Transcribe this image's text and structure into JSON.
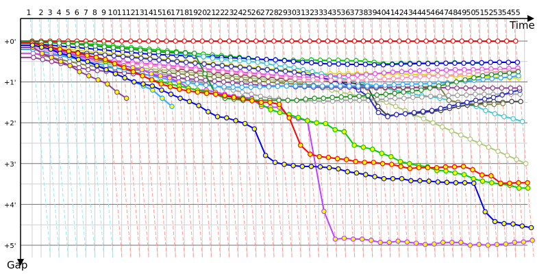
{
  "chart_data": {
    "type": "line",
    "title": "",
    "xlabel": "Time",
    "ylabel": "Gap",
    "x_ticks": [
      "1",
      "2",
      "3",
      "4",
      "5",
      "6",
      "7",
      "8",
      "9",
      "10",
      "11",
      "12",
      "13",
      "14",
      "15",
      "16",
      "17",
      "18",
      "19",
      "20",
      "21",
      "22",
      "23",
      "24",
      "25",
      "26",
      "27",
      "28",
      "29",
      "30",
      "31",
      "32",
      "33",
      "34",
      "35",
      "36",
      "37",
      "38",
      "39",
      "40",
      "41",
      "42",
      "43",
      "44",
      "45",
      "46",
      "47",
      "48",
      "49",
      "50",
      "51",
      "52",
      "53",
      "54",
      "55"
    ],
    "y_ticks": [
      "+0'",
      "+1'",
      "+2'",
      "+3'",
      "+4'",
      "+5'"
    ],
    "y_unit": "minutes",
    "ylim": [
      -0.55,
      5.2
    ],
    "grid": true,
    "y_axis_inverted": true,
    "lap_line_color_early": "#9ee6e6",
    "lap_line_color": "#ff9a9a",
    "series": [
      {
        "color": "#ff0000",
        "fill": "#ffffff",
        "gaps": [
          0,
          0,
          0,
          0,
          0,
          0,
          0,
          0,
          0,
          0,
          0,
          0,
          0,
          0,
          0,
          0,
          0,
          0,
          0,
          0,
          0,
          0,
          0,
          0,
          0,
          0,
          0,
          0,
          0,
          0,
          0,
          0,
          0,
          0,
          0,
          0,
          0,
          0,
          0,
          0,
          0,
          0,
          0,
          0,
          0,
          0,
          0,
          0,
          0,
          0,
          0,
          0,
          0,
          0,
          0
        ]
      },
      {
        "color": "#00cc00",
        "fill": "#ffffff",
        "gaps": [
          0.02,
          0.03,
          0.03,
          0.04,
          0.05,
          0.06,
          0.07,
          0.08,
          0.1,
          0.12,
          0.14,
          0.16,
          0.18,
          0.2,
          0.22,
          0.24,
          0.26,
          0.28,
          0.3,
          0.32,
          0.34,
          0.36,
          0.38,
          0.4,
          0.42,
          0.44,
          0.46,
          0.46,
          0.47,
          0.47,
          0.47,
          0.46,
          0.47,
          0.47,
          0.47,
          0.48,
          0.48,
          0.49,
          0.52,
          0.55,
          0.56,
          0.54,
          0.54,
          0.54,
          0.54,
          0.54,
          0.54,
          0.53,
          0.54,
          0.54,
          0.54
        ]
      },
      {
        "color": "#0000ee",
        "fill": "#ffffff",
        "gaps": [
          0.05,
          0.08,
          0.1,
          0.12,
          0.14,
          0.16,
          0.18,
          0.2,
          0.22,
          0.24,
          0.26,
          0.28,
          0.3,
          0.32,
          0.33,
          0.34,
          0.35,
          0.36,
          0.37,
          0.38,
          0.39,
          0.4,
          0.41,
          0.42,
          0.43,
          0.44,
          0.45,
          0.46,
          0.48,
          0.5,
          0.52,
          0.53,
          0.55,
          0.56,
          0.56,
          0.57,
          0.57,
          0.57,
          0.58,
          0.58,
          0.57,
          0.56,
          0.56,
          0.55,
          0.55,
          0.55,
          0.54,
          0.54,
          0.54,
          0.53,
          0.53,
          0.52,
          0.52,
          0.52,
          0.52
        ]
      },
      {
        "color": "#dddd00",
        "fill": "#ffffff",
        "gaps": [
          0.1,
          0.12,
          0.15,
          0.18,
          0.2,
          0.22,
          0.25,
          0.28,
          0.3,
          0.33,
          0.35,
          0.37,
          0.4,
          0.42,
          0.44,
          0.46,
          0.48,
          0.5,
          0.52,
          0.54,
          0.56,
          0.58,
          0.6,
          0.62,
          0.64,
          0.66,
          0.68,
          0.7,
          0.72,
          0.74,
          0.76,
          0.78,
          0.8,
          0.8,
          0.8,
          0.8,
          0.8,
          0.8,
          0.8,
          0.8,
          0.8,
          0.8,
          0.82,
          0.82,
          0.83,
          0.84,
          0.85,
          0.86,
          0.86,
          0.87,
          0.87,
          0.88,
          0.9,
          0.9,
          0.9
        ]
      },
      {
        "color": "#40c8d0",
        "fill": "#ffffff",
        "gaps": [
          0.02,
          0.03,
          0.04,
          0.05,
          0.06,
          0.08,
          0.1,
          0.12,
          0.14,
          0.16,
          0.18,
          0.2,
          0.22,
          0.24,
          0.26,
          0.28,
          0.3,
          0.32,
          0.35,
          0.38,
          0.42,
          0.45,
          0.47,
          0.48,
          0.5,
          0.52,
          0.55,
          0.6,
          0.62,
          0.65,
          0.7,
          0.75,
          0.8,
          0.85,
          0.9,
          0.95,
          1.0,
          1.05,
          1.1,
          1.15,
          1.2,
          1.25,
          1.3,
          1.33,
          1.36,
          1.4,
          1.45,
          1.5,
          1.55,
          1.6,
          1.7,
          1.78,
          1.85,
          1.9,
          1.97
        ]
      },
      {
        "color": "#b0c878",
        "fill": "#ffffff",
        "gaps": [
          0.15,
          0.2,
          0.25,
          0.3,
          0.35,
          0.4,
          0.45,
          0.5,
          0.55,
          0.6,
          0.62,
          0.64,
          0.66,
          0.68,
          0.7,
          0.72,
          0.74,
          0.76,
          0.78,
          0.8,
          0.82,
          0.84,
          0.86,
          0.88,
          0.9,
          0.92,
          0.94,
          0.96,
          0.98,
          1.0,
          1.05,
          1.1,
          1.15,
          1.2,
          1.25,
          1.3,
          1.35,
          1.4,
          1.45,
          1.5,
          1.6,
          1.7,
          1.8,
          1.9,
          2.0,
          2.1,
          2.2,
          2.3,
          2.4,
          2.5,
          2.6,
          2.7,
          2.8,
          2.9,
          3.0
        ]
      },
      {
        "color": "#404040",
        "fill": "#ffffff",
        "gaps": [
          0.2,
          0.25,
          0.3,
          0.35,
          0.38,
          0.4,
          0.42,
          0.45,
          0.48,
          0.5,
          0.52,
          0.55,
          0.58,
          0.6,
          0.62,
          0.65,
          0.68,
          0.7,
          0.72,
          0.74,
          0.76,
          0.78,
          0.8,
          0.82,
          0.84,
          0.86,
          0.88,
          0.9,
          0.92,
          0.93,
          0.94,
          0.95,
          0.96,
          0.98,
          1.0,
          1.02,
          1.05,
          1.1,
          1.6,
          1.83,
          1.8,
          1.78,
          1.77,
          1.75,
          1.72,
          1.7,
          1.65,
          1.6,
          1.57,
          1.55,
          1.5,
          1.48,
          1.5,
          1.48,
          1.48
        ]
      },
      {
        "color": "#808040",
        "fill": "#ffffff",
        "gaps": [
          0.3,
          0.35,
          0.4,
          0.45,
          0.5,
          0.55,
          0.6,
          0.62,
          0.64,
          0.66,
          0.68,
          0.7,
          0.72,
          0.74,
          0.76,
          0.78,
          0.8,
          0.82,
          0.84,
          0.86,
          0.88,
          0.9,
          0.92,
          0.94,
          0.96,
          0.98,
          1.0,
          1.02,
          1.04,
          1.05,
          1.06,
          1.08,
          1.1,
          1.1,
          1.12,
          1.12,
          1.15,
          1.15,
          1.15,
          1.15,
          1.15,
          1.15,
          1.15,
          1.12,
          1.12,
          1.1,
          1.45,
          1.5,
          1.52,
          1.55,
          1.55,
          1.55,
          1.53
        ]
      },
      {
        "color": "#a0a0a0",
        "fill": "#ffffff",
        "gaps": [
          0.1,
          0.15,
          0.2,
          0.25,
          0.3,
          0.35,
          0.4,
          0.45,
          0.5,
          0.55,
          0.6,
          0.65,
          0.7,
          0.75,
          0.8,
          0.85,
          0.9,
          0.95,
          1.0,
          1.05,
          1.1,
          1.15,
          1.2,
          1.25,
          1.3,
          1.35,
          1.4,
          1.42,
          1.45,
          1.45,
          1.45,
          1.47,
          1.47,
          1.47,
          1.45,
          1.45,
          1.45,
          1.45,
          1.43,
          1.42,
          1.4,
          1.4,
          1.38,
          1.37,
          1.35,
          1.35,
          1.33,
          1.33,
          1.32,
          1.3,
          1.3,
          1.3,
          1.3,
          1.3,
          1.3
        ]
      },
      {
        "color": "#2828c8",
        "fill": "#ffffff",
        "gaps": [
          0.1,
          0.15,
          0.2,
          0.22,
          0.25,
          0.28,
          0.3,
          0.32,
          0.34,
          0.36,
          0.38,
          0.4,
          0.42,
          0.44,
          0.46,
          0.48,
          0.5,
          0.52,
          0.54,
          0.56,
          0.58,
          0.6,
          0.62,
          0.64,
          0.66,
          0.68,
          0.7,
          0.72,
          0.74,
          0.76,
          0.8,
          0.85,
          0.9,
          0.95,
          1.0,
          1.1,
          1.2,
          1.35,
          1.75,
          1.85,
          1.8,
          1.78,
          1.75,
          1.72,
          1.7,
          1.65,
          1.6,
          1.55,
          1.5,
          1.45,
          1.42,
          1.38,
          1.32,
          1.25,
          1.2
        ]
      },
      {
        "color": "#e050f0",
        "fill": "#ffffff",
        "gaps": [
          0.3,
          0.32,
          0.34,
          0.36,
          0.38,
          0.4,
          0.42,
          0.44,
          0.46,
          0.48,
          0.5,
          0.52,
          0.54,
          0.56,
          0.58,
          0.6,
          0.62,
          0.64,
          0.66,
          0.68,
          0.7,
          0.72,
          0.74,
          0.76,
          0.78,
          0.8,
          0.82,
          0.84,
          0.86,
          0.87,
          0.88,
          0.88,
          0.87,
          0.86,
          0.85,
          0.84,
          0.83,
          0.82,
          0.8,
          0.78,
          0.76,
          0.75,
          0.74,
          0.73,
          0.72,
          0.72,
          0.71,
          0.7,
          0.7,
          0.7,
          0.69,
          0.68,
          0.68,
          0.67,
          0.66
        ]
      },
      {
        "color": "#903c90",
        "fill": "#ffffff",
        "gaps": [
          0.4,
          0.45,
          0.5,
          0.55,
          0.6,
          0.65,
          0.7,
          0.72,
          0.74,
          0.76,
          0.78,
          0.8,
          0.82,
          0.84,
          0.86,
          0.88,
          0.9,
          0.92,
          0.94,
          0.96,
          0.98,
          1.0,
          1.02,
          1.04,
          1.06,
          1.08,
          1.1,
          1.1,
          1.1,
          1.12,
          1.12,
          1.13,
          1.13,
          1.13,
          1.13,
          1.13,
          1.13,
          1.13,
          1.13,
          1.13,
          1.13,
          1.13,
          1.13,
          1.14,
          1.14,
          1.14,
          1.14,
          1.15,
          1.15,
          1.15,
          1.15,
          1.15,
          1.15,
          1.15,
          1.15
        ]
      },
      {
        "color": "#30a8ff",
        "fill": "#ffffff",
        "gaps": [
          0.2,
          0.25,
          0.3,
          0.35,
          0.4,
          0.45,
          0.5,
          0.55,
          0.6,
          0.65,
          0.7,
          0.75,
          0.8,
          0.85,
          0.9,
          0.95,
          1.0,
          1.02,
          1.05,
          1.08,
          1.1,
          1.12,
          1.13,
          1.13,
          1.13,
          1.12,
          1.12,
          1.11,
          1.1,
          1.1,
          1.1,
          1.1,
          1.1,
          1.1,
          1.1,
          1.1,
          1.1,
          1.1,
          1.1,
          1.08,
          1.07,
          1.06,
          1.05,
          1.05,
          1.04,
          1.03,
          1.02,
          1.0,
          0.98,
          0.96,
          0.94,
          0.92,
          0.9,
          0.88,
          0.85
        ]
      },
      {
        "color": "#ff90b8",
        "fill": "#ffffff",
        "gaps": [
          0.15,
          0.2,
          0.25,
          0.3,
          0.35,
          0.4,
          0.45,
          0.48,
          0.5,
          0.52,
          0.54,
          0.56,
          0.58,
          0.6,
          0.62,
          0.64,
          0.66,
          0.68,
          0.7,
          0.72,
          0.74,
          0.76,
          0.78,
          0.8,
          0.82,
          0.84,
          0.86,
          0.88,
          0.9,
          0.92,
          0.94,
          0.95,
          0.96,
          0.96,
          0.96,
          0.96,
          0.96,
          0.95,
          0.94,
          0.93,
          0.92,
          0.9,
          0.88,
          0.87,
          0.86,
          0.85,
          0.84,
          0.82,
          0.8,
          0.78,
          0.77,
          0.76,
          0.75,
          0.74,
          0.73
        ]
      },
      {
        "color": "#209020",
        "fill": "#ffffff",
        "gaps": [
          0.02,
          0.03,
          0.04,
          0.05,
          0.06,
          0.08,
          0.1,
          0.12,
          0.14,
          0.16,
          0.18,
          0.2,
          0.22,
          0.24,
          0.26,
          0.28,
          0.28,
          0.29,
          0.3,
          0.8,
          1.3,
          1.4,
          1.42,
          1.45,
          1.45,
          1.45,
          1.45,
          1.45,
          1.45,
          1.45,
          1.42,
          1.4,
          1.4,
          1.38,
          1.37,
          1.36,
          1.35,
          1.33,
          1.32,
          1.3,
          1.28,
          1.25,
          1.22,
          1.2,
          1.15,
          1.1,
          1.05,
          1.0,
          0.95,
          0.9,
          0.85,
          0.82,
          0.8,
          0.78,
          0.75
        ]
      },
      {
        "color": "#903c90",
        "fill": "#ffff00",
        "gaps": [
          0.15,
          0.3,
          0.4,
          0.5,
          0.6,
          0.75,
          0.85,
          0.95,
          1.05,
          1.25,
          1.4
        ]
      },
      {
        "color": "#30a8ff",
        "fill": "#ffff00",
        "gaps": [
          0.1,
          0.15,
          0.2,
          0.25,
          0.3,
          0.4,
          0.5,
          0.6,
          0.7,
          0.8,
          0.9,
          1.0,
          1.1,
          1.2,
          1.4,
          1.6
        ]
      },
      {
        "color": "#c040ff",
        "fill": "#ffff00",
        "gaps": [
          0.1,
          0.15,
          0.2,
          0.25,
          0.3,
          0.35,
          0.4,
          0.45,
          0.5,
          0.55,
          0.6,
          0.65,
          0.7,
          0.8,
          0.85,
          0.9,
          1.0,
          1.15,
          1.2,
          1.2,
          1.25,
          1.3,
          1.35,
          1.38,
          1.4,
          1.6,
          1.62,
          1.62,
          1.85,
          1.9,
          1.95,
          4.17,
          4.85,
          4.83,
          4.85,
          4.85,
          4.88,
          4.93,
          4.93,
          4.9,
          4.92,
          4.95,
          4.98,
          4.97,
          4.93,
          4.93,
          4.93,
          5.0,
          4.98,
          5.0,
          4.98,
          4.97,
          4.93,
          4.92,
          4.88
        ]
      },
      {
        "color": "#00cc00",
        "fill": "#ffff00",
        "gaps": [
          0.05,
          0.1,
          0.15,
          0.2,
          0.25,
          0.3,
          0.35,
          0.4,
          0.5,
          0.55,
          0.65,
          0.75,
          0.85,
          0.95,
          1.0,
          1.05,
          1.1,
          1.15,
          1.2,
          1.25,
          1.3,
          1.35,
          1.38,
          1.4,
          1.42,
          1.55,
          1.68,
          1.75,
          1.8,
          1.87,
          1.95,
          2.0,
          2.02,
          2.17,
          2.22,
          2.55,
          2.6,
          2.65,
          2.75,
          2.83,
          2.95,
          3.0,
          3.05,
          3.08,
          3.17,
          3.18,
          3.23,
          3.27,
          3.37,
          3.43,
          3.47,
          3.5,
          3.53,
          3.6,
          3.6
        ]
      },
      {
        "color": "#ff0000",
        "fill": "#ffff00",
        "gaps": [
          0.05,
          0.1,
          0.15,
          0.2,
          0.25,
          0.3,
          0.35,
          0.4,
          0.45,
          0.55,
          0.65,
          0.75,
          0.85,
          0.95,
          1.05,
          1.12,
          1.18,
          1.22,
          1.25,
          1.28,
          1.3,
          1.33,
          1.38,
          1.42,
          1.46,
          1.5,
          1.5,
          1.55,
          1.88,
          2.55,
          2.77,
          2.83,
          2.85,
          2.88,
          2.9,
          2.95,
          2.97,
          2.97,
          3.0,
          3.02,
          3.07,
          3.12,
          3.1,
          3.1,
          3.1,
          3.08,
          3.08,
          3.07,
          3.15,
          3.28,
          3.3,
          3.48,
          3.48,
          3.47,
          3.47
        ]
      },
      {
        "color": "#0000ee",
        "fill": "#ffff00",
        "gaps": [
          0.1,
          0.15,
          0.2,
          0.3,
          0.35,
          0.45,
          0.5,
          0.6,
          0.7,
          0.8,
          0.9,
          1.0,
          1.05,
          1.1,
          1.2,
          1.3,
          1.4,
          1.48,
          1.58,
          1.73,
          1.85,
          1.88,
          1.95,
          2.02,
          2.15,
          2.8,
          2.97,
          3.02,
          3.05,
          3.07,
          3.07,
          3.08,
          3.1,
          3.13,
          3.2,
          3.23,
          3.27,
          3.32,
          3.37,
          3.37,
          3.37,
          3.42,
          3.42,
          3.43,
          3.45,
          3.46,
          3.47,
          3.47,
          3.48,
          4.18,
          4.42,
          4.47,
          4.48,
          4.53,
          4.57
        ]
      }
    ]
  }
}
